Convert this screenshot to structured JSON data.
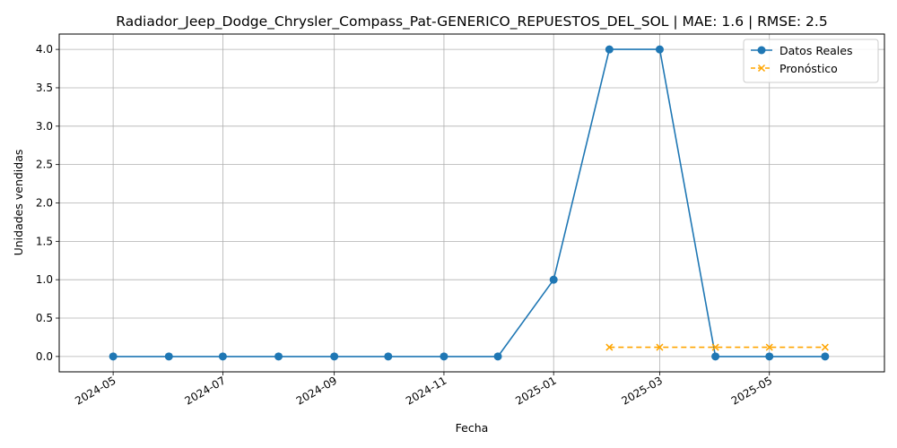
{
  "chart_data": {
    "type": "line",
    "title": "Radiador_Jeep_Dodge_Chrysler_Compass_Pat-GENERICO_REPUESTOS_DEL_SOL | MAE: 1.6 | RMSE: 2.5",
    "xlabel": "Fecha",
    "ylabel": "Unidades vendidas",
    "ylim": [
      -0.2,
      4.2
    ],
    "xlim": [
      "2024-04-01",
      "2025-07-04"
    ],
    "grid": true,
    "legend_position": "top-right",
    "x_ticks": [
      "2024-05",
      "2024-07",
      "2024-09",
      "2024-11",
      "2025-01",
      "2025-03",
      "2025-05"
    ],
    "y_ticks": [
      "0.0",
      "0.5",
      "1.0",
      "1.5",
      "2.0",
      "2.5",
      "3.0",
      "3.5",
      "4.0"
    ],
    "series": [
      {
        "name": "Datos Reales",
        "color": "#1f77b4",
        "marker": "circle",
        "line_style": "solid",
        "x": [
          "2024-05-01",
          "2024-06-01",
          "2024-07-01",
          "2024-08-01",
          "2024-09-01",
          "2024-10-01",
          "2024-11-01",
          "2024-12-01",
          "2025-01-01",
          "2025-02-01",
          "2025-03-01",
          "2025-04-01",
          "2025-05-01",
          "2025-06-01"
        ],
        "values": [
          0,
          0,
          0,
          0,
          0,
          0,
          0,
          0,
          1,
          4,
          4,
          0,
          0,
          0
        ]
      },
      {
        "name": "Pronóstico",
        "color": "#ffa500",
        "marker": "x",
        "line_style": "dashed",
        "x": [
          "2025-02-01",
          "2025-03-01",
          "2025-04-01",
          "2025-05-01",
          "2025-06-01"
        ],
        "values": [
          0.12,
          0.12,
          0.12,
          0.12,
          0.12
        ]
      }
    ]
  }
}
